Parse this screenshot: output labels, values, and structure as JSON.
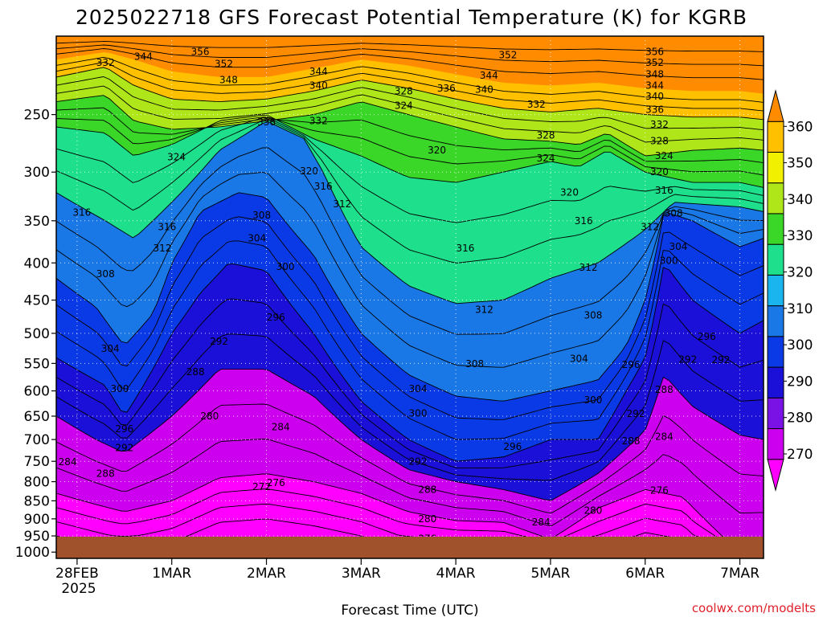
{
  "chart_data": {
    "type": "area",
    "title": "2025022718 GFS Forecast Potential Temperature (K) for KGRB",
    "xlabel": "Forecast Time (UTC)",
    "ylabel": "",
    "source": "coolwx.com/modelts",
    "y_scale": "log",
    "y_reversed": true,
    "ylim": [
      1020,
      195
    ],
    "xlim": [
      -0.22,
      7.25
    ],
    "grid": true,
    "y_ticks": [
      250,
      300,
      350,
      400,
      450,
      500,
      550,
      600,
      650,
      700,
      750,
      800,
      850,
      900,
      950,
      1000
    ],
    "y_tick_labels": [
      "250",
      "300",
      "350",
      "400",
      "450",
      "500",
      "550",
      "600",
      "650",
      "700",
      "750",
      "800",
      "850",
      "900",
      "950",
      "1000"
    ],
    "x_ticks": [
      0,
      1,
      2,
      3,
      4,
      5,
      6,
      7
    ],
    "x_tick_labels": [
      "28FEB",
      "1MAR",
      "2MAR",
      "3MAR",
      "4MAR",
      "5MAR",
      "6MAR",
      "7MAR"
    ],
    "x_sub_label": "2025",
    "colorbar": {
      "levels": [
        270,
        280,
        290,
        300,
        310,
        320,
        330,
        340,
        350,
        360
      ],
      "labels": [
        "270",
        "280",
        "290",
        "300",
        "310",
        "320",
        "330",
        "340",
        "350",
        "360"
      ],
      "colors": [
        "#ff00ff",
        "#cc00ee",
        "#7a12e6",
        "#1a10d8",
        "#0a3ae6",
        "#1a78e6",
        "#1ab4ee",
        "#1ee08c",
        "#3ad628",
        "#aee61a",
        "#f0f000",
        "#ffc000",
        "#ff8c00"
      ]
    },
    "boundaries": [
      {
        "from": 270,
        "to": 280,
        "x": [
          -0.22,
          0.2,
          0.5,
          1.0,
          1.5,
          2.0,
          2.5,
          3.0,
          3.5,
          4.0,
          4.5,
          5.0,
          5.5,
          6.0,
          6.4,
          7.0,
          7.25
        ],
        "p": [
          830,
          860,
          880,
          850,
          790,
          780,
          800,
          830,
          880,
          905,
          910,
          960,
          870,
          820,
          840,
          1000,
          990
        ]
      },
      {
        "from": 280,
        "to": 290,
        "x": [
          -0.22,
          0.2,
          0.5,
          1.0,
          1.5,
          2.0,
          2.5,
          3.0,
          3.5,
          4.0,
          4.5,
          5.0,
          5.5,
          6.0,
          6.2,
          6.5,
          7.0,
          7.25
        ],
        "p": [
          650,
          700,
          730,
          650,
          560,
          560,
          610,
          700,
          770,
          800,
          820,
          850,
          780,
          680,
          570,
          630,
          690,
          700
        ]
      },
      {
        "from": 290,
        "to": 300,
        "x": [
          -0.22,
          0.3,
          0.5,
          0.8,
          1.0,
          1.3,
          1.6,
          2.0,
          2.5,
          3.0,
          3.5,
          4.0,
          4.5,
          5.0,
          5.5,
          5.8,
          6.0,
          6.2,
          6.5,
          7.0,
          7.25
        ],
        "p": [
          540,
          590,
          650,
          560,
          500,
          440,
          400,
          410,
          500,
          620,
          700,
          750,
          740,
          700,
          700,
          600,
          540,
          400,
          450,
          500,
          480
        ]
      },
      {
        "from": 300,
        "to": 310,
        "x": [
          -0.22,
          0.2,
          0.5,
          0.8,
          1.0,
          1.3,
          1.7,
          2.0,
          2.5,
          3.0,
          3.5,
          4.0,
          4.5,
          5.0,
          5.5,
          5.8,
          6.0,
          6.2,
          6.5,
          7.0,
          7.25
        ],
        "p": [
          420,
          460,
          520,
          470,
          400,
          340,
          320,
          325,
          390,
          500,
          570,
          610,
          620,
          600,
          580,
          520,
          450,
          340,
          350,
          380,
          370
        ]
      },
      {
        "from": 310,
        "to": 320,
        "x": [
          -0.22,
          0.3,
          0.6,
          1.0,
          1.5,
          2.0,
          2.4,
          2.6,
          3.0,
          3.5,
          4.0,
          4.5,
          5.0,
          5.5,
          6.0,
          6.3,
          7.0,
          7.25
        ],
        "p": [
          320,
          350,
          370,
          330,
          280,
          255,
          270,
          300,
          380,
          430,
          455,
          450,
          420,
          400,
          360,
          330,
          335,
          340
        ]
      },
      {
        "from": 320,
        "to": 330,
        "x": [
          -0.22,
          0.3,
          0.6,
          1.0,
          1.5,
          2.0,
          2.5,
          3.0,
          3.5,
          4.0,
          4.5,
          5.0,
          5.3,
          5.6,
          6.0,
          6.5,
          7.0,
          7.25
        ],
        "p": [
          260,
          265,
          285,
          275,
          255,
          250,
          270,
          285,
          305,
          310,
          300,
          290,
          295,
          280,
          300,
          310,
          310,
          315
        ]
      },
      {
        "from": 330,
        "to": 340,
        "x": [
          -0.22,
          0.3,
          0.6,
          1.0,
          1.5,
          2.0,
          2.5,
          3.0,
          3.5,
          4.0,
          4.5,
          5.0,
          5.3,
          5.6,
          6.0,
          6.5,
          7.0,
          7.25
        ],
        "p": [
          240,
          235,
          255,
          262,
          260,
          255,
          250,
          240,
          250,
          260,
          270,
          272,
          275,
          265,
          285,
          280,
          278,
          280
        ]
      },
      {
        "from": 340,
        "to": 350,
        "x": [
          -0.22,
          0.3,
          0.6,
          1.0,
          1.5,
          2.0,
          2.5,
          3.0,
          3.5,
          4.0,
          4.5,
          5.0,
          5.5,
          6.0,
          6.5,
          7.0,
          7.25
        ],
        "p": [
          222,
          215,
          228,
          238,
          240,
          238,
          232,
          224,
          230,
          238,
          245,
          248,
          245,
          250,
          252,
          252,
          254
        ]
      },
      {
        "from": 350,
        "to": 360,
        "x": [
          -0.22,
          0.3,
          0.6,
          1.0,
          1.5,
          2.0,
          2.5,
          3.0,
          3.5,
          4.0,
          4.5,
          5.0,
          5.5,
          6.0,
          6.5,
          7.0,
          7.25
        ],
        "p": [
          210,
          205,
          210,
          218,
          222,
          222,
          216,
          210,
          214,
          220,
          226,
          228,
          226,
          230,
          232,
          232,
          234
        ]
      }
    ],
    "contour_labels": [
      {
        "label": "352",
        "x": 1.55,
        "p": 213
      },
      {
        "label": "348",
        "x": 1.6,
        "p": 224
      },
      {
        "label": "344",
        "x": 2.55,
        "p": 218
      },
      {
        "label": "340",
        "x": 2.55,
        "p": 228
      },
      {
        "label": "336",
        "x": 3.9,
        "p": 230
      },
      {
        "label": "340",
        "x": 4.3,
        "p": 231
      },
      {
        "label": "344",
        "x": 4.35,
        "p": 221
      },
      {
        "label": "352",
        "x": 4.55,
        "p": 207
      },
      {
        "label": "328",
        "x": 3.45,
        "p": 232
      },
      {
        "label": "324",
        "x": 3.45,
        "p": 243
      },
      {
        "label": "336",
        "x": 2.0,
        "p": 256
      },
      {
        "label": "332",
        "x": 2.55,
        "p": 255
      },
      {
        "label": "324",
        "x": 1.05,
        "p": 286
      },
      {
        "label": "320",
        "x": 2.45,
        "p": 299
      },
      {
        "label": "316",
        "x": 2.6,
        "p": 314
      },
      {
        "label": "312",
        "x": 2.8,
        "p": 332
      },
      {
        "label": "320",
        "x": 3.8,
        "p": 280
      },
      {
        "label": "332",
        "x": 4.85,
        "p": 242
      },
      {
        "label": "328",
        "x": 4.95,
        "p": 267
      },
      {
        "label": "324",
        "x": 4.95,
        "p": 287
      },
      {
        "label": "320",
        "x": 5.2,
        "p": 320
      },
      {
        "label": "316",
        "x": 5.35,
        "p": 350
      },
      {
        "label": "312",
        "x": 5.4,
        "p": 406
      },
      {
        "label": "308",
        "x": 5.45,
        "p": 472
      },
      {
        "label": "304",
        "x": 5.3,
        "p": 542
      },
      {
        "label": "300",
        "x": 5.45,
        "p": 618
      },
      {
        "label": "296",
        "x": 6.65,
        "p": 505
      },
      {
        "label": "292",
        "x": 6.45,
        "p": 543
      },
      {
        "label": "288",
        "x": 6.2,
        "p": 598
      },
      {
        "label": "284",
        "x": 6.2,
        "p": 694
      },
      {
        "label": "288",
        "x": 5.85,
        "p": 703
      },
      {
        "label": "292",
        "x": 5.9,
        "p": 645
      },
      {
        "label": "296",
        "x": 5.85,
        "p": 552
      },
      {
        "label": "276",
        "x": 6.15,
        "p": 823
      },
      {
        "label": "280",
        "x": 5.45,
        "p": 877
      },
      {
        "label": "284",
        "x": 4.9,
        "p": 910
      },
      {
        "label": "280",
        "x": 3.7,
        "p": 900
      },
      {
        "label": "276",
        "x": 3.7,
        "p": 958
      },
      {
        "label": "288",
        "x": 3.7,
        "p": 820
      },
      {
        "label": "292",
        "x": 3.6,
        "p": 751
      },
      {
        "label": "296",
        "x": 4.6,
        "p": 716
      },
      {
        "label": "300",
        "x": 3.6,
        "p": 644
      },
      {
        "label": "304",
        "x": 3.6,
        "p": 596
      },
      {
        "label": "308",
        "x": 4.2,
        "p": 551
      },
      {
        "label": "312",
        "x": 4.3,
        "p": 464
      },
      {
        "label": "316",
        "x": 4.1,
        "p": 382
      },
      {
        "label": "300",
        "x": 2.2,
        "p": 405
      },
      {
        "label": "296",
        "x": 2.1,
        "p": 475
      },
      {
        "label": "292",
        "x": 1.5,
        "p": 513
      },
      {
        "label": "288",
        "x": 1.25,
        "p": 565
      },
      {
        "label": "284",
        "x": 2.15,
        "p": 673
      },
      {
        "label": "280",
        "x": 1.4,
        "p": 650
      },
      {
        "label": "276",
        "x": 2.1,
        "p": 803
      },
      {
        "label": "272",
        "x": 1.95,
        "p": 813
      },
      {
        "label": "308",
        "x": 1.95,
        "p": 344
      },
      {
        "label": "304",
        "x": 1.9,
        "p": 370
      },
      {
        "label": "316",
        "x": 0.95,
        "p": 357
      },
      {
        "label": "312",
        "x": 0.9,
        "p": 382
      },
      {
        "label": "316",
        "x": 0.05,
        "p": 341
      },
      {
        "label": "308",
        "x": 0.3,
        "p": 414
      },
      {
        "label": "304",
        "x": 0.35,
        "p": 525
      },
      {
        "label": "300",
        "x": 0.45,
        "p": 596
      },
      {
        "label": "296",
        "x": 0.5,
        "p": 677
      },
      {
        "label": "292",
        "x": 0.5,
        "p": 719
      },
      {
        "label": "288",
        "x": 0.3,
        "p": 780
      },
      {
        "label": "284",
        "x": -0.1,
        "p": 752
      },
      {
        "label": "332",
        "x": 0.3,
        "p": 212
      },
      {
        "label": "344",
        "x": 0.7,
        "p": 208
      },
      {
        "label": "356",
        "x": 1.3,
        "p": 205
      },
      {
        "label": "356",
        "x": 6.1,
        "p": 205
      },
      {
        "label": "352",
        "x": 6.1,
        "p": 212
      },
      {
        "label": "348",
        "x": 6.1,
        "p": 220
      },
      {
        "label": "344",
        "x": 6.1,
        "p": 228
      },
      {
        "label": "340",
        "x": 6.1,
        "p": 236
      },
      {
        "label": "336",
        "x": 6.1,
        "p": 246
      },
      {
        "label": "332",
        "x": 6.15,
        "p": 258
      },
      {
        "label": "328",
        "x": 6.15,
        "p": 272
      },
      {
        "label": "324",
        "x": 6.2,
        "p": 285
      },
      {
        "label": "320",
        "x": 6.15,
        "p": 300
      },
      {
        "label": "316",
        "x": 6.2,
        "p": 318
      },
      {
        "label": "312",
        "x": 6.05,
        "p": 357
      },
      {
        "label": "308",
        "x": 6.3,
        "p": 342
      },
      {
        "label": "304",
        "x": 6.35,
        "p": 380
      },
      {
        "label": "300",
        "x": 6.25,
        "p": 397
      },
      {
        "label": "292",
        "x": 6.8,
        "p": 544
      }
    ]
  }
}
